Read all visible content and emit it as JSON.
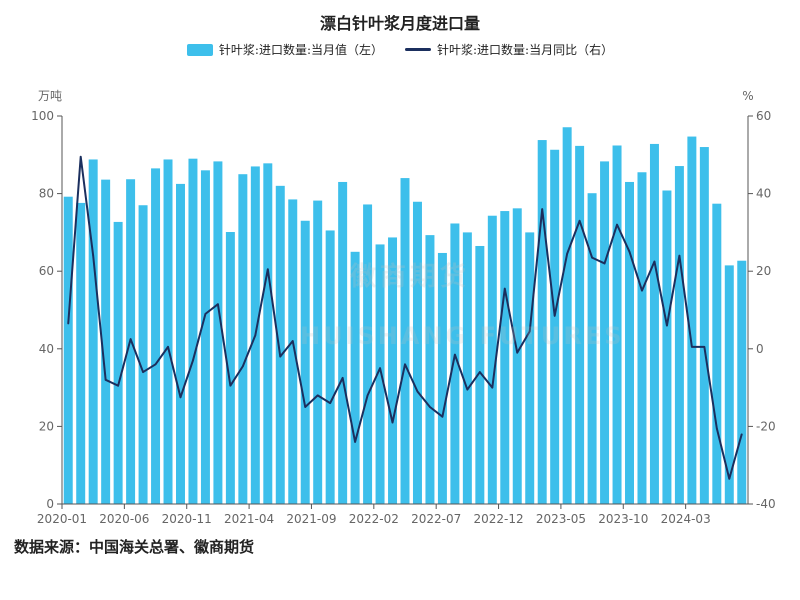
{
  "chart_data": {
    "type": "bar+line",
    "title": "漂白针叶浆月度进口量",
    "source": "数据来源：中国海关总署、徽商期货",
    "left_axis": {
      "unit": "万吨",
      "range": [
        0,
        100
      ],
      "ticks": [
        0,
        20,
        40,
        60,
        80,
        100
      ]
    },
    "right_axis": {
      "unit": "%",
      "range": [
        -40,
        60
      ],
      "ticks": [
        -40,
        -20,
        0,
        20,
        40,
        60
      ]
    },
    "x_tick_labels": [
      "2020-01",
      "2020-06",
      "2020-11",
      "2021-04",
      "2021-09",
      "2022-02",
      "2022-07",
      "2022-12",
      "2023-05",
      "2023-10",
      "2024-03"
    ],
    "x_tick_every": 5,
    "categories": [
      "2020-01",
      "2020-02",
      "2020-03",
      "2020-04",
      "2020-05",
      "2020-06",
      "2020-07",
      "2020-08",
      "2020-09",
      "2020-10",
      "2020-11",
      "2020-12",
      "2021-01",
      "2021-02",
      "2021-03",
      "2021-04",
      "2021-05",
      "2021-06",
      "2021-07",
      "2021-08",
      "2021-09",
      "2021-10",
      "2021-11",
      "2021-12",
      "2022-01",
      "2022-02",
      "2022-03",
      "2022-04",
      "2022-05",
      "2022-06",
      "2022-07",
      "2022-08",
      "2022-09",
      "2022-10",
      "2022-11",
      "2022-12",
      "2023-01",
      "2023-02",
      "2023-03",
      "2023-04",
      "2023-05",
      "2023-06",
      "2023-07",
      "2023-08",
      "2023-09",
      "2023-10",
      "2023-11",
      "2023-12",
      "2024-01",
      "2024-02",
      "2024-03",
      "2024-04",
      "2024-05",
      "2024-06",
      "2024-07"
    ],
    "series": [
      {
        "name": "针叶浆:进口数量:当月值（左）",
        "type": "bar",
        "axis": "left",
        "color": "#3dbfeb",
        "values": [
          79.2,
          77.6,
          88.8,
          83.6,
          72.7,
          83.7,
          77.0,
          86.5,
          88.8,
          82.5,
          89.0,
          86.0,
          88.3,
          70.1,
          85.0,
          87.0,
          87.8,
          82.0,
          78.5,
          73.0,
          78.2,
          70.5,
          83.0,
          65.0,
          77.2,
          66.9,
          68.7,
          84.0,
          77.9,
          69.3,
          64.7,
          72.3,
          70.0,
          66.5,
          74.3,
          75.5,
          76.2,
          70.0,
          93.8,
          91.3,
          97.1,
          92.3,
          80.1,
          88.3,
          92.4,
          83.0,
          85.5,
          92.8,
          80.8,
          87.1,
          94.7,
          92.0,
          77.4,
          61.5,
          62.7
        ]
      },
      {
        "name": "针叶浆:进口数量:当月同比（右）",
        "type": "line",
        "axis": "right",
        "color": "#1b2f5e",
        "values": [
          6.5,
          49.5,
          24.0,
          -8.0,
          -9.5,
          2.5,
          -6.0,
          -4.0,
          0.5,
          -12.5,
          -3.0,
          9.0,
          11.5,
          -9.5,
          -4.5,
          3.5,
          20.5,
          -2.0,
          2.0,
          -15.0,
          -12.0,
          -14.0,
          -7.5,
          -24.0,
          -12.0,
          -5.0,
          -19.0,
          -4.0,
          -11.0,
          -15.0,
          -17.5,
          -1.5,
          -10.5,
          -6.0,
          -10.0,
          15.5,
          -1.0,
          4.5,
          36.0,
          8.5,
          24.5,
          33.0,
          23.5,
          22.0,
          32.0,
          25.0,
          15.0,
          22.5,
          6.0,
          24.0,
          0.5,
          0.5,
          -20.5,
          -33.5,
          -22.0
        ]
      }
    ],
    "grid": false,
    "legend_position": "top-center",
    "watermark_cn": "徽商期货",
    "watermark_en": "HUISHANG FUTURES"
  }
}
